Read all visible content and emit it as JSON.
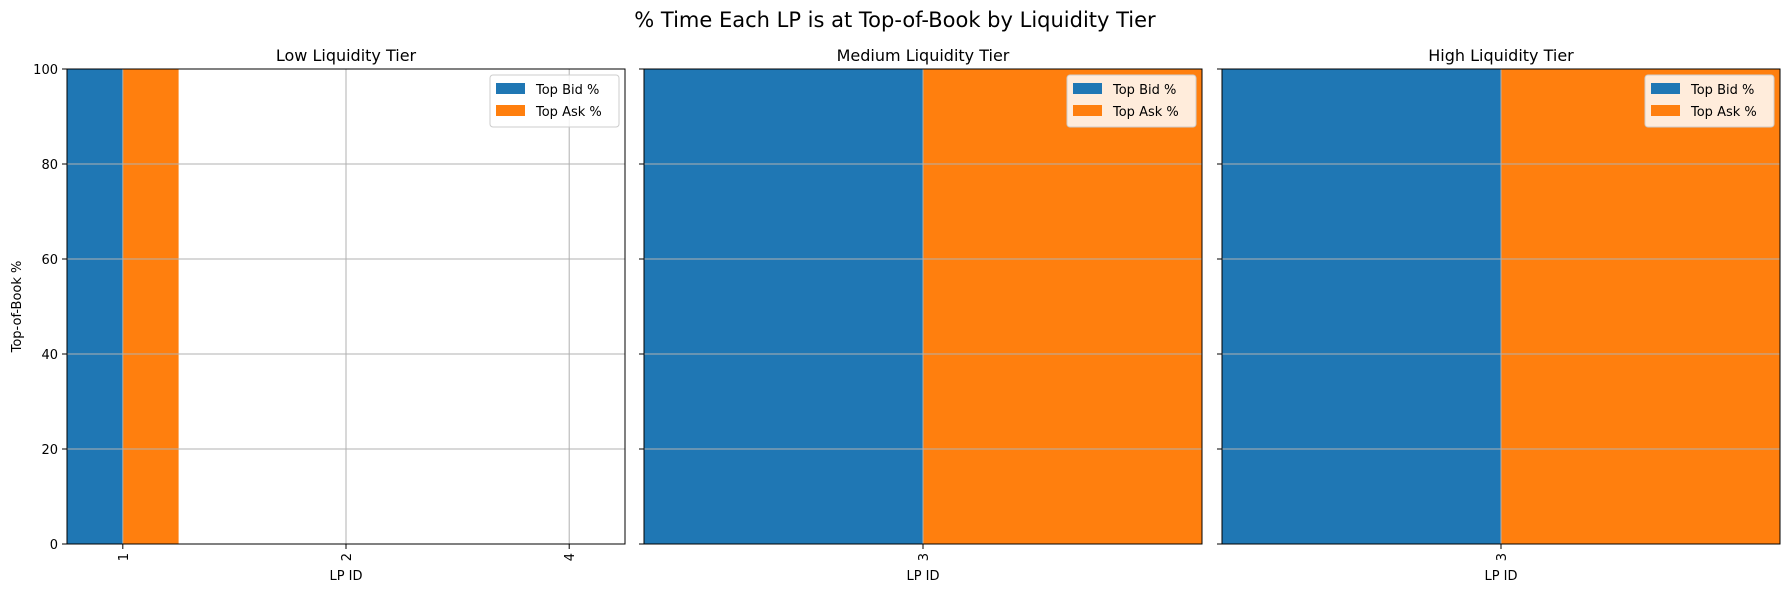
{
  "figure": {
    "title": "% Time Each LP is at Top-of-Book by Liquidity Tier"
  },
  "colors": {
    "bid": "#1f77b4",
    "ask": "#ff7f0e",
    "grid": "#b0b0b0",
    "axis": "#000000"
  },
  "chart_data": [
    {
      "type": "bar",
      "title": "Low Liquidity Tier",
      "xlabel": "LP ID",
      "ylabel": "Top-of-Book %",
      "ylim": [
        0,
        100
      ],
      "yticks": [
        0,
        20,
        40,
        60,
        80,
        100
      ],
      "categories": [
        "1",
        "2",
        "4"
      ],
      "series": [
        {
          "name": "Top Bid %",
          "values": [
            100,
            0,
            0
          ]
        },
        {
          "name": "Top Ask %",
          "values": [
            100,
            0,
            0
          ]
        }
      ],
      "grid": true,
      "legend": "top-right"
    },
    {
      "type": "bar",
      "title": "Medium Liquidity Tier",
      "xlabel": "LP ID",
      "ylabel": "",
      "ylim": [
        0,
        100
      ],
      "yticks": [
        0,
        20,
        40,
        60,
        80,
        100
      ],
      "categories": [
        "3"
      ],
      "series": [
        {
          "name": "Top Bid %",
          "values": [
            100
          ]
        },
        {
          "name": "Top Ask %",
          "values": [
            100
          ]
        }
      ],
      "grid": true,
      "legend": "top-right"
    },
    {
      "type": "bar",
      "title": "High Liquidity Tier",
      "xlabel": "LP ID",
      "ylabel": "",
      "ylim": [
        0,
        100
      ],
      "yticks": [
        0,
        20,
        40,
        60,
        80,
        100
      ],
      "categories": [
        "3"
      ],
      "series": [
        {
          "name": "Top Bid %",
          "values": [
            100
          ]
        },
        {
          "name": "Top Ask %",
          "values": [
            100
          ]
        }
      ],
      "grid": true,
      "legend": "top-right"
    }
  ]
}
